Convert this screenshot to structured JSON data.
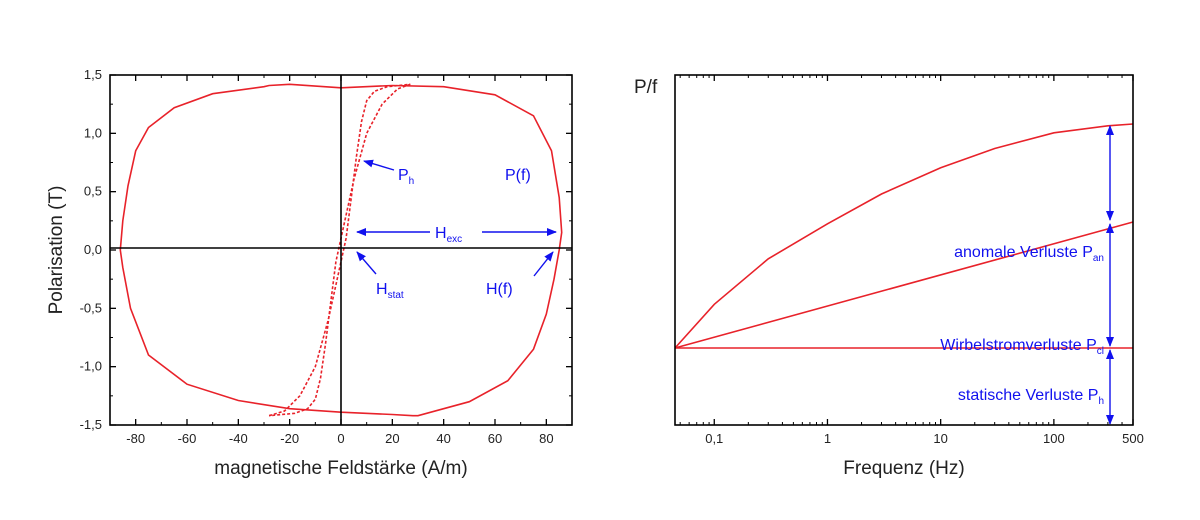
{
  "colors": {
    "curve": "#e8222a",
    "annotation": "#1111ee",
    "axis": "#000000",
    "text": "#222222"
  },
  "chart_data": [
    {
      "type": "line",
      "xlabel": "magnetische Feldstärke (A/m)",
      "ylabel": "Polarisation (T)",
      "xlim": [
        -90,
        90
      ],
      "ylim": [
        -1.5,
        1.5
      ],
      "x_ticks": [
        "-80",
        "-60",
        "-40",
        "-20",
        "0",
        "20",
        "40",
        "60",
        "80"
      ],
      "y_ticks": [
        "-1,5",
        "-1,0",
        "-0,5",
        "0,0",
        "0,5",
        "1,0",
        "1,5"
      ],
      "grid": false,
      "series": [
        {
          "style": "solid",
          "x": [
            0,
            20,
            40,
            60,
            75,
            82,
            85,
            86,
            85,
            83,
            80,
            75,
            65,
            50,
            30,
            28,
            20,
            0,
            -20,
            -40,
            -60,
            -75,
            -82,
            -85,
            -86,
            -85,
            -83,
            -80,
            -75,
            -65,
            -50,
            -30,
            -28,
            -20,
            0
          ],
          "y": [
            1.39,
            1.41,
            1.4,
            1.33,
            1.15,
            0.85,
            0.45,
            0.15,
            0.0,
            -0.25,
            -0.55,
            -0.85,
            -1.12,
            -1.3,
            -1.42,
            -1.42,
            -1.41,
            -1.39,
            -1.36,
            -1.29,
            -1.15,
            -0.9,
            -0.5,
            -0.15,
            0.0,
            0.25,
            0.55,
            0.85,
            1.05,
            1.22,
            1.34,
            1.4,
            1.41,
            1.42,
            1.39
          ]
        },
        {
          "style": "dashed",
          "x": [
            -28,
            -22,
            -16,
            -10,
            -5,
            -2,
            0,
            2,
            4,
            6,
            8,
            10,
            13,
            18,
            27
          ],
          "y": [
            -1.42,
            -1.38,
            -1.25,
            -1.0,
            -0.6,
            -0.3,
            -0.1,
            0.1,
            0.45,
            0.8,
            1.1,
            1.28,
            1.36,
            1.4,
            1.42
          ]
        },
        {
          "style": "dashed",
          "x": [
            27,
            22,
            16,
            10,
            5,
            2,
            0,
            -2,
            -4,
            -6,
            -8,
            -10,
            -13,
            -18,
            -28
          ],
          "y": [
            1.42,
            1.38,
            1.25,
            1.0,
            0.6,
            0.3,
            0.1,
            -0.1,
            -0.45,
            -0.8,
            -1.1,
            -1.28,
            -1.36,
            -1.4,
            -1.42
          ]
        }
      ],
      "annotations": [
        {
          "main": "P",
          "sub": "h"
        },
        {
          "main": "P(f)",
          "sub": ""
        },
        {
          "main": "H",
          "sub": "exc"
        },
        {
          "main": "H",
          "sub": "stat"
        },
        {
          "main": "H(f)",
          "sub": ""
        }
      ]
    },
    {
      "type": "line",
      "xlabel": "Frequenz (Hz)",
      "ylabel": "P/f",
      "xscale": "log",
      "xlim": [
        0.045,
        500
      ],
      "ylim": [
        0,
        1
      ],
      "x_ticks": [
        "0,1",
        "1",
        "10",
        "100",
        "500"
      ],
      "x_tick_values": [
        0.1,
        1,
        10,
        100,
        500
      ],
      "grid": false,
      "series": [
        {
          "x": [
            0.045,
            500
          ],
          "y": [
            0.22,
            0.22
          ]
        },
        {
          "x": [
            0.045,
            500
          ],
          "y": [
            0.22,
            0.58
          ]
        },
        {
          "x": [
            0.045,
            0.1,
            0.3,
            1,
            3,
            10,
            30,
            100,
            300,
            500
          ],
          "y": [
            0.22,
            0.345,
            0.475,
            0.575,
            0.66,
            0.735,
            0.79,
            0.835,
            0.855,
            0.86
          ]
        }
      ],
      "annotations": [
        {
          "main": "anomale Verluste P",
          "sub": "an"
        },
        {
          "main": "Wirbelstromverluste P",
          "sub": "cl"
        },
        {
          "main": "statische Verluste P",
          "sub": "h"
        }
      ]
    }
  ]
}
